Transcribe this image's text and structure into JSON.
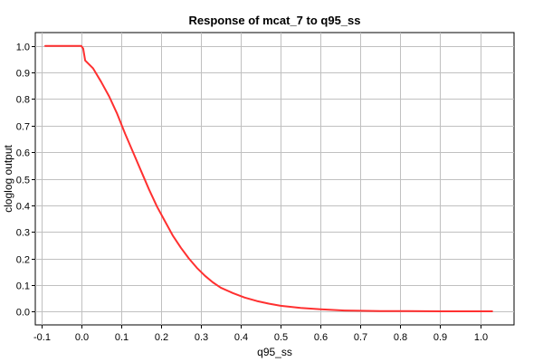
{
  "chart_data": {
    "type": "line",
    "title": "Response of mcat_7 to q95_ss",
    "xlabel": "q95_ss",
    "ylabel": "cloglog output",
    "xlim": [
      -0.115,
      1.085
    ],
    "ylim": [
      -0.05,
      1.05
    ],
    "x_ticks": [
      -0.1,
      0.0,
      0.1,
      0.2,
      0.3,
      0.4,
      0.5,
      0.6,
      0.7,
      0.8,
      0.9,
      1.0
    ],
    "x_tick_labels": [
      "-0.1",
      "0.0",
      "0.1",
      "0.2",
      "0.3",
      "0.4",
      "0.5",
      "0.6",
      "0.7",
      "0.8",
      "0.9",
      "1.0"
    ],
    "y_ticks": [
      0.0,
      0.1,
      0.2,
      0.3,
      0.4,
      0.5,
      0.6,
      0.7,
      0.8,
      0.9,
      1.0
    ],
    "y_tick_labels": [
      "0.0",
      "0.1",
      "0.2",
      "0.3",
      "0.4",
      "0.5",
      "0.6",
      "0.7",
      "0.8",
      "0.9",
      "1.0"
    ],
    "grid": true,
    "line_color": "#ff3030",
    "grid_color": "#c0c0c0",
    "series": [
      {
        "x": [
          -0.09,
          0.0,
          0.005,
          0.01,
          0.03,
          0.05,
          0.07,
          0.09,
          0.11,
          0.13,
          0.15,
          0.17,
          0.19,
          0.21,
          0.23,
          0.25,
          0.27,
          0.29,
          0.31,
          0.33,
          0.35,
          0.38,
          0.41,
          0.44,
          0.47,
          0.5,
          0.55,
          0.6,
          0.66,
          0.7,
          0.75,
          0.82,
          0.9,
          1.0,
          1.03
        ],
        "y": [
          1.0,
          1.0,
          0.99,
          0.945,
          0.915,
          0.865,
          0.81,
          0.745,
          0.67,
          0.6,
          0.53,
          0.46,
          0.395,
          0.34,
          0.285,
          0.24,
          0.2,
          0.165,
          0.135,
          0.11,
          0.09,
          0.07,
          0.053,
          0.04,
          0.03,
          0.022,
          0.014,
          0.009,
          0.004,
          0.003,
          0.002,
          0.002,
          0.001,
          0.001,
          0.001
        ]
      }
    ]
  }
}
